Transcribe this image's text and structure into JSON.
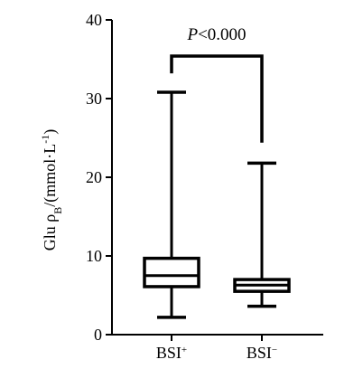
{
  "chart_data": {
    "type": "box",
    "title": "",
    "ylabel": {
      "main": "Glu ρ",
      "sub": "B",
      "unit_open": "/(mmol·L",
      "sup": "-1",
      "unit_close": ")"
    },
    "ylim": [
      0,
      40
    ],
    "yticks": [
      0,
      10,
      20,
      30,
      40
    ],
    "categories": [
      {
        "base": "BSI",
        "sup": "+"
      },
      {
        "base": "BSI",
        "sup": "−"
      }
    ],
    "boxes": [
      {
        "min": 2.2,
        "q1": 6.1,
        "median": 7.5,
        "q3": 9.7,
        "max": 30.8
      },
      {
        "min": 3.6,
        "q1": 5.5,
        "median": 6.3,
        "q3": 7.0,
        "max": 21.8
      }
    ],
    "annotation": {
      "text_italic": "P",
      "text_rest": "<0.000",
      "bracket_y": 35.4,
      "left_end_y": 33.2,
      "right_end_y": 24.4
    }
  }
}
